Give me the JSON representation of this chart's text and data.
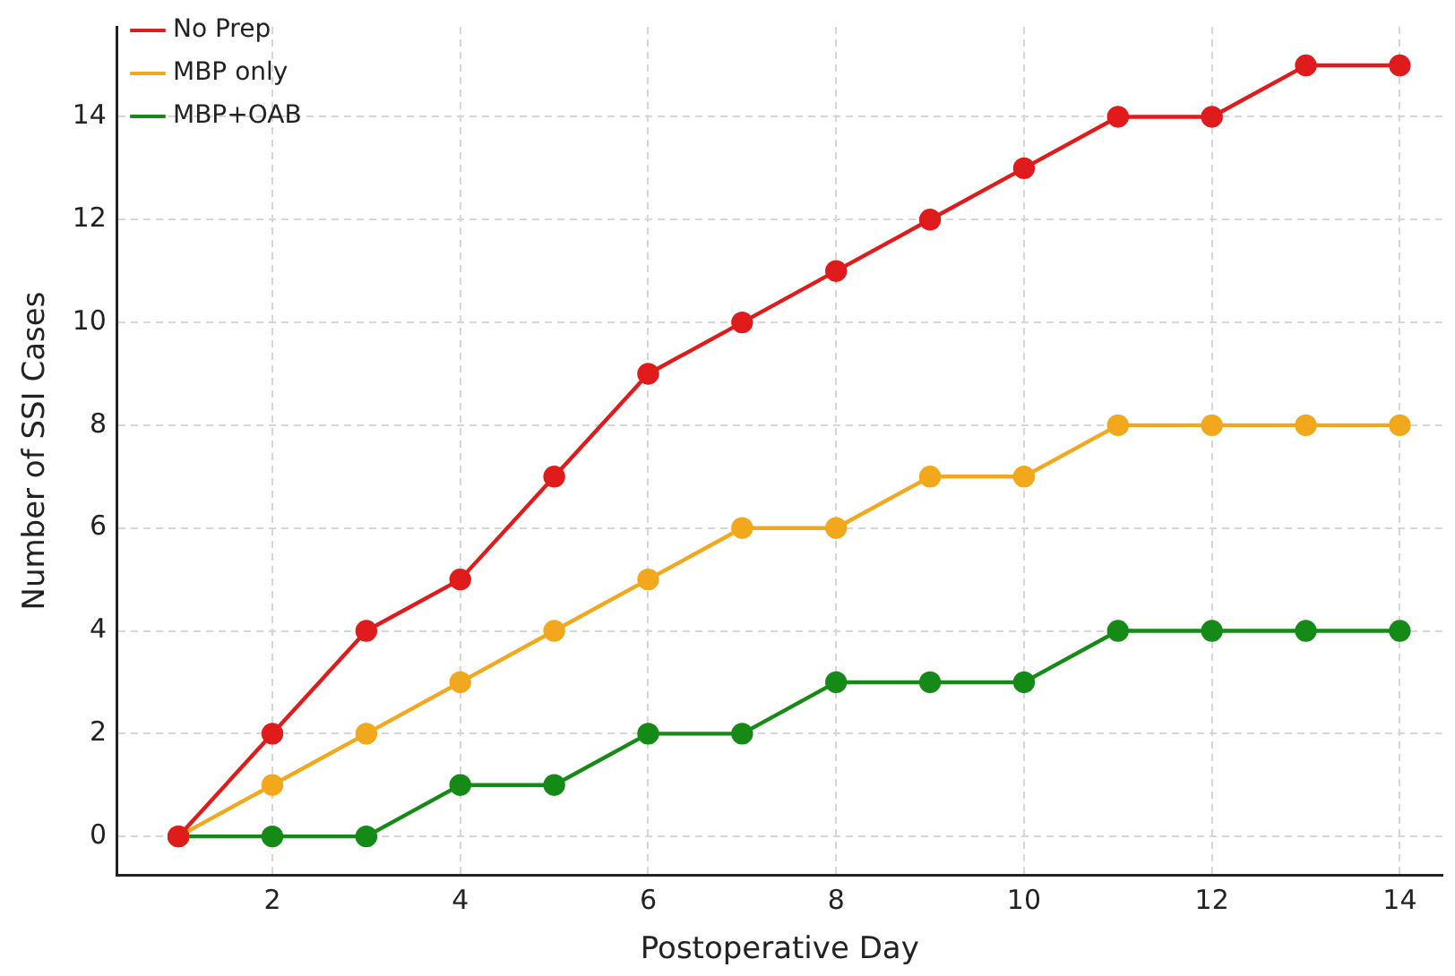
{
  "chart_data": {
    "type": "line",
    "xlabel": "Postoperative Day",
    "ylabel": "Number of SSI Cases",
    "x": [
      1,
      2,
      3,
      4,
      5,
      6,
      7,
      8,
      9,
      10,
      11,
      12,
      13,
      14
    ],
    "series": [
      {
        "name": "No Prep",
        "color": "#e01b1b",
        "values": [
          0,
          2,
          4,
          5,
          7,
          9,
          10,
          11,
          12,
          13,
          14,
          14,
          15,
          15
        ]
      },
      {
        "name": "MBP only",
        "color": "#f2a81d",
        "values": [
          0,
          1,
          2,
          3,
          4,
          5,
          6,
          6,
          7,
          7,
          8,
          8,
          8,
          8
        ]
      },
      {
        "name": "MBP+OAB",
        "color": "#168a16",
        "values": [
          0,
          0,
          0,
          1,
          1,
          2,
          2,
          3,
          3,
          3,
          4,
          4,
          4,
          4
        ]
      }
    ],
    "xlim": [
      0.35,
      14.45
    ],
    "xticks": [
      2,
      4,
      6,
      8,
      10,
      12,
      14
    ],
    "ylim": [
      -0.75,
      15.75
    ],
    "yticks": [
      0,
      2,
      4,
      6,
      8,
      10,
      12,
      14
    ],
    "grid": true,
    "legend": "top left",
    "marker": "circle",
    "line_style": "solid"
  }
}
